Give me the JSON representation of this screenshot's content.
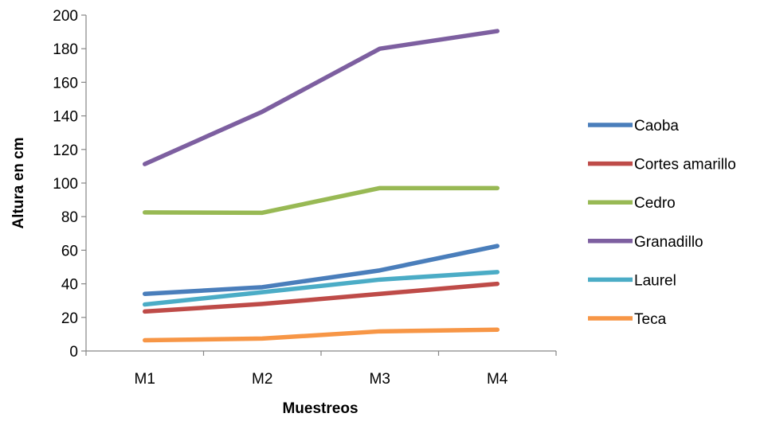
{
  "chart_data": {
    "type": "line",
    "title": "",
    "xlabel": "Muestreos",
    "ylabel": "Altura en cm",
    "categories": [
      "M1",
      "M2",
      "M3",
      "M4"
    ],
    "ylim": [
      0,
      200
    ],
    "yticks": [
      0,
      20,
      40,
      60,
      80,
      100,
      120,
      140,
      160,
      180,
      200
    ],
    "grid": false,
    "legend_position": "right",
    "series": [
      {
        "name": "Caoba",
        "color": "#4A7EBB",
        "values": [
          34,
          38,
          48,
          62.5
        ]
      },
      {
        "name": "Cortes amarillo",
        "color": "#BE4B48",
        "values": [
          23.5,
          28,
          34,
          40
        ]
      },
      {
        "name": "Cedro",
        "color": "#98B954",
        "values": [
          82.5,
          82.3,
          97,
          97
        ]
      },
      {
        "name": "Granadillo",
        "color": "#7D5FA0",
        "values": [
          111.3,
          142.5,
          180,
          190.5
        ]
      },
      {
        "name": "Laurel",
        "color": "#4BACC6",
        "values": [
          27.7,
          35,
          42.5,
          47
        ]
      },
      {
        "name": "Teca",
        "color": "#F79646",
        "values": [
          6.4,
          7.4,
          11.7,
          12.7
        ]
      }
    ]
  }
}
